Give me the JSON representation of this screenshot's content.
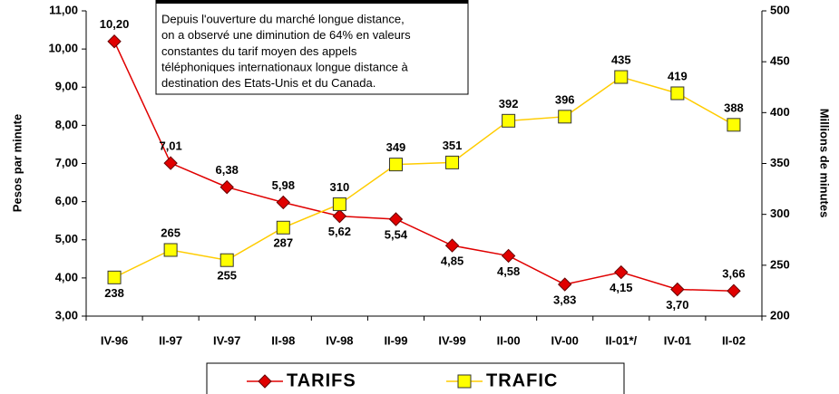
{
  "chart_data": {
    "type": "line",
    "annotation": [
      "Depuis l'ouverture du marché longue distance,",
      "on a observé une diminution de 64% en valeurs",
      "constantes du tarif moyen des appels",
      "téléphoniques internationaux longue distance à",
      "destination des Etats-Unis et du Canada."
    ],
    "y_label": "Pesos par minute",
    "y2_label": "Millions de minutes",
    "categories": [
      "IV-96",
      "II-97",
      "IV-97",
      "II-98",
      "IV-98",
      "II-99",
      "IV-99",
      "II-00",
      "IV-00",
      "II-01*/",
      "IV-01",
      "II-02"
    ],
    "series": [
      {
        "name": "TARIFS",
        "color": "#e00000",
        "marker": "diamond",
        "axis": "y",
        "values": [
          10.2,
          7.01,
          6.38,
          5.98,
          5.62,
          5.54,
          4.85,
          4.58,
          3.83,
          4.15,
          3.7,
          3.66
        ],
        "value_labels": [
          "10,20",
          "7,01",
          "6,38",
          "5,98",
          "5,62",
          "5,54",
          "4,85",
          "4,58",
          "3,83",
          "4,15",
          "3,70",
          "3,66"
        ]
      },
      {
        "name": "TRAFIC",
        "color": "#ffff00",
        "line_color": "#ffcc00",
        "marker": "square",
        "axis": "y2",
        "values": [
          238,
          265,
          255,
          287,
          310,
          349,
          351,
          392,
          396,
          435,
          419,
          388
        ]
      }
    ],
    "ylim": [
      3,
      11
    ],
    "yticks": [
      {
        "value": 3,
        "label": "3,00"
      },
      {
        "value": 4,
        "label": "4,00"
      },
      {
        "value": 5,
        "label": "5,00"
      },
      {
        "value": 6,
        "label": "6,00"
      },
      {
        "value": 7,
        "label": "7,00"
      },
      {
        "value": 8,
        "label": "8,00"
      },
      {
        "value": 9,
        "label": "9,00"
      },
      {
        "value": 10,
        "label": "10,00"
      },
      {
        "value": 11,
        "label": "11,00"
      }
    ],
    "y2lim": [
      200,
      500
    ],
    "y2ticks": [
      200,
      250,
      300,
      350,
      400,
      450,
      500
    ]
  }
}
